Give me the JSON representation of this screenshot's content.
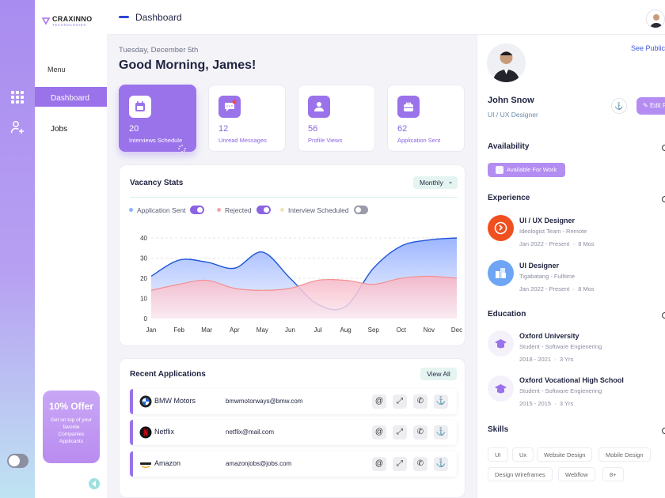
{
  "brand": {
    "name": "CRAXINNO",
    "sub": "TECHNOLOGIES"
  },
  "header": {
    "title": "Dashboard"
  },
  "sidebar": {
    "menu_label": "Menu",
    "items": [
      {
        "label": "Dashboard"
      },
      {
        "label": "Jobs"
      }
    ],
    "offer": {
      "title": "10% Offer",
      "text": "Get on top of your favorite Companies Applicants"
    }
  },
  "main": {
    "date": "Tuesday, December 5th",
    "greeting": "Good Morning, James!",
    "stats": [
      {
        "value": "20",
        "label": "Interviews Schedule",
        "icon": "calendar-icon"
      },
      {
        "value": "12",
        "label": "Unread Messages",
        "icon": "message-icon"
      },
      {
        "value": "56",
        "label": "Profile Views",
        "icon": "user-icon"
      },
      {
        "value": "62",
        "label": "Application Sent",
        "icon": "briefcase-icon"
      }
    ]
  },
  "vacancy": {
    "title": "Vacancy Stats",
    "period": "Monthly",
    "legend": [
      {
        "label": "Application Sent",
        "color": "#8fb4ff",
        "enabled": true
      },
      {
        "label": "Rejected",
        "color": "#f5a6a6",
        "enabled": true
      },
      {
        "label": "Interview Scheduled",
        "color": "#f2e4b3",
        "enabled": false
      }
    ]
  },
  "chart_data": {
    "type": "area",
    "x": [
      "Jan",
      "Feb",
      "Mar",
      "Apr",
      "May",
      "Jun",
      "Jul",
      "Aug",
      "Sep",
      "Oct",
      "Nov",
      "Dec"
    ],
    "ylim": [
      0,
      40
    ],
    "yticks": [
      0,
      10,
      20,
      30,
      40
    ],
    "grid": true,
    "series": [
      {
        "name": "Application Sent",
        "color": "#1f56d9",
        "values": [
          21,
          29,
          28,
          25,
          33,
          20,
          7,
          6,
          25,
          36,
          39,
          40
        ]
      },
      {
        "name": "Rejected",
        "color": "#f28f8f",
        "values": [
          14,
          17,
          19,
          15,
          14,
          15,
          19,
          19,
          17,
          20,
          21,
          20
        ]
      }
    ]
  },
  "recent": {
    "title": "Recent Applications",
    "view_all": "View All",
    "rows": [
      {
        "company": "BMW Motors",
        "email": "bmwmotorways@bmw.com",
        "logo": "bmw-logo-icon"
      },
      {
        "company": "Netflix",
        "email": "netflix@mail.com",
        "logo": "netflix-logo-icon"
      },
      {
        "company": "Amazon",
        "email": "amazonjobs@jobs.com",
        "logo": "amazon-logo-icon"
      }
    ],
    "actions": [
      {
        "icon": "at-icon",
        "glyph": "@"
      },
      {
        "icon": "external-link-icon",
        "glyph": "⤢"
      },
      {
        "icon": "phone-icon",
        "glyph": "✆"
      },
      {
        "icon": "anchor-icon",
        "glyph": "⚓"
      }
    ]
  },
  "profile": {
    "see_public": "See Public",
    "name": "John Snow",
    "role": "UI / UX Designer",
    "edit_label": "Edit P",
    "availability": {
      "title": "Availability",
      "status": "Available For Work"
    },
    "experience": {
      "title": "Experience",
      "items": [
        {
          "title": "UI / UX Designer",
          "company": "Ideologist Team - Remote",
          "period": "Jan 2022 - Present",
          "duration": "8 Mos",
          "color": "#f0501f"
        },
        {
          "title": "UI Designer",
          "company": "Tigabatang - Fulltime",
          "period": "Jan 2022 - Present",
          "duration": "8 Mos",
          "color": "#6ea6f5"
        }
      ]
    },
    "education": {
      "title": "Education",
      "items": [
        {
          "school": "Oxford University",
          "degree": "Student - Software Engienering",
          "period": "2018 - 2021",
          "duration": "3 Yrs"
        },
        {
          "school": "Oxford Vocational High School",
          "degree": "Student - Software Engienering",
          "period": "2015 - 2015",
          "duration": "3 Yrs"
        }
      ]
    },
    "skills": {
      "title": "Skills",
      "items": [
        "UI",
        "Ux",
        "Website Design",
        "Mobile Design",
        "Design Wireframes",
        "Webflow",
        "8+"
      ]
    }
  }
}
